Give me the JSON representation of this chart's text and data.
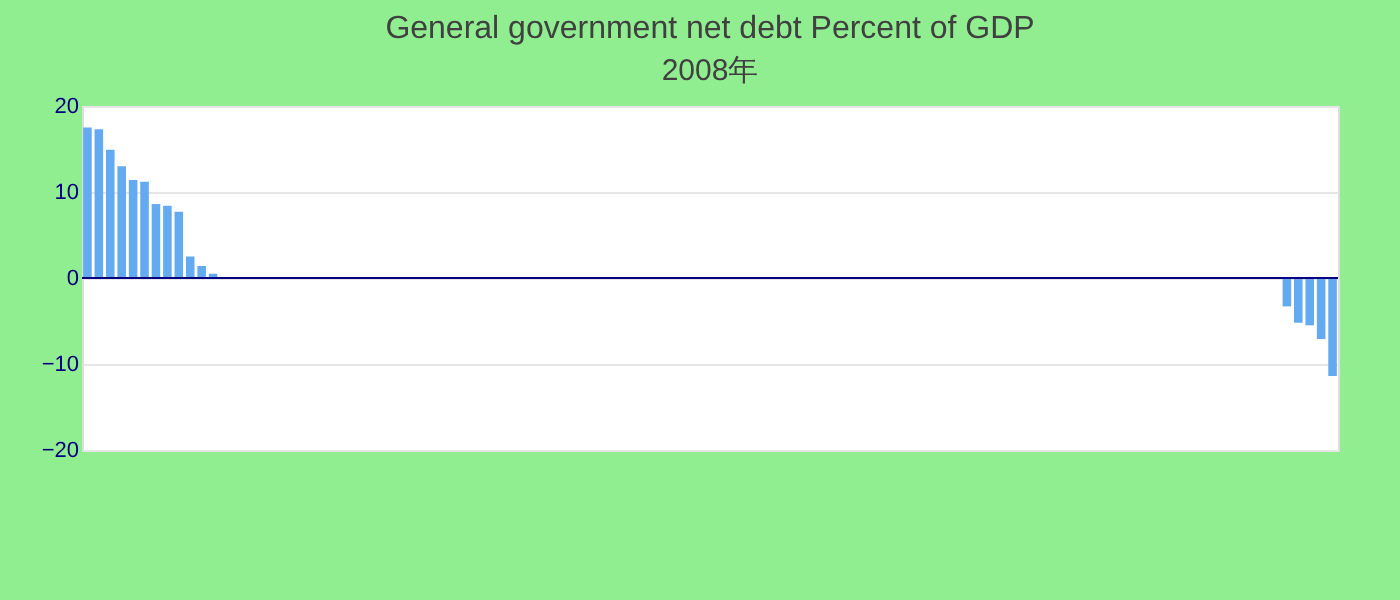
{
  "chart_data": {
    "type": "bar",
    "title": "General government net debt  Percent of GDP",
    "subtitle": "2008年",
    "categories": [
      null,
      null,
      null,
      null,
      null,
      null,
      null,
      null,
      null,
      null,
      null,
      null,
      null,
      null,
      null,
      null,
      null,
      null,
      null,
      null,
      null,
      null,
      null,
      null,
      null,
      null,
      null,
      null,
      null,
      null,
      null,
      null,
      null,
      null,
      null,
      null,
      null,
      null,
      null,
      null,
      null,
      null,
      null,
      null,
      null,
      null,
      null,
      null,
      null,
      null,
      null,
      null,
      null,
      null,
      null,
      null,
      null,
      null,
      null,
      null,
      null,
      null,
      null,
      null,
      null,
      null,
      null,
      null,
      null,
      null,
      null,
      null,
      null,
      null,
      null,
      null,
      null,
      null,
      null,
      null,
      null,
      null,
      null,
      null,
      null,
      null,
      null,
      null,
      null,
      null,
      null,
      null,
      null,
      null,
      null,
      null,
      null,
      null,
      null,
      null,
      null,
      null,
      null,
      null,
      null,
      null,
      null,
      null,
      null,
      null
    ],
    "values": [
      17.5,
      17.3,
      14.9,
      13.0,
      11.4,
      11.2,
      8.6,
      8.4,
      7.7,
      2.5,
      1.4,
      0.5,
      null,
      null,
      null,
      null,
      null,
      null,
      null,
      null,
      null,
      null,
      null,
      null,
      null,
      null,
      null,
      null,
      null,
      null,
      null,
      null,
      null,
      null,
      null,
      null,
      null,
      null,
      null,
      null,
      null,
      null,
      null,
      null,
      null,
      null,
      null,
      null,
      null,
      null,
      null,
      null,
      null,
      null,
      null,
      null,
      null,
      null,
      null,
      null,
      null,
      null,
      null,
      null,
      null,
      null,
      null,
      null,
      null,
      null,
      null,
      null,
      null,
      null,
      null,
      null,
      null,
      null,
      null,
      null,
      null,
      null,
      null,
      null,
      null,
      null,
      null,
      null,
      null,
      null,
      null,
      null,
      null,
      null,
      null,
      null,
      null,
      null,
      null,
      null,
      null,
      null,
      null,
      null,
      null,
      -3.3,
      -5.2,
      -5.5,
      -7.1,
      -11.4
    ],
    "color": "#64aaf0",
    "ylim": [
      -20,
      20
    ],
    "yticks": [
      -20,
      -10,
      0,
      10,
      20
    ],
    "grid": true,
    "tick_labels": "y",
    "ref_lines": [
      {
        "axis": "y",
        "value": 0,
        "color": "#000080"
      }
    ]
  }
}
